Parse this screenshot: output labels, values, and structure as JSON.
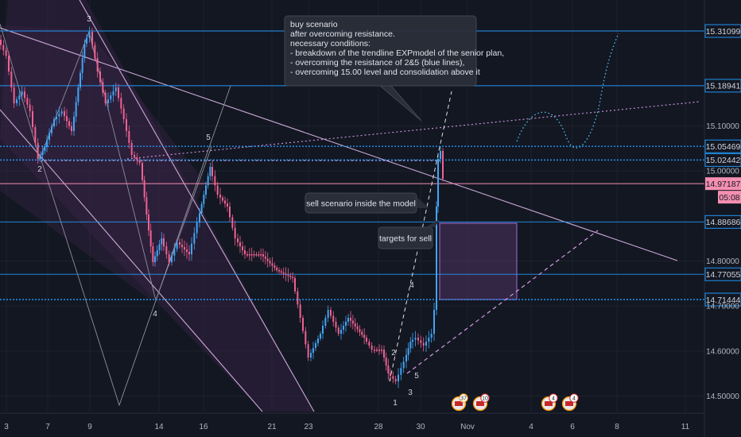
{
  "chart_data": {
    "type": "candlestick",
    "x_ticks": [
      "3",
      "7",
      "9",
      "14",
      "16",
      "21",
      "23",
      "28",
      "30",
      "Nov",
      "4",
      "6",
      "8",
      "11"
    ],
    "y_ticks": [
      "15.10000",
      "15.00000",
      "14.80000",
      "14.70000",
      "14.60000",
      "14.50000"
    ],
    "y_range": [
      14.47,
      15.36
    ],
    "levels": [
      {
        "value": 15.31099,
        "label": "15.31099",
        "color": "#2196f3",
        "style": "solid"
      },
      {
        "value": 15.18941,
        "label": "15.18941",
        "color": "#2196f3",
        "style": "solid"
      },
      {
        "value": 15.05469,
        "label": "15.05469",
        "color": "#2196f3",
        "style": "dotted"
      },
      {
        "value": 15.02442,
        "label": "15.02442",
        "color": "#2196f3",
        "style": "dotted"
      },
      {
        "value": 14.88686,
        "label": "14.88686",
        "color": "#2196f3",
        "style": "solid"
      },
      {
        "value": 14.77055,
        "label": "14.77055",
        "color": "#2196f3",
        "style": "solid"
      },
      {
        "value": 14.71444,
        "label": "14.71444",
        "color": "#2196f3",
        "style": "dotted"
      }
    ],
    "last_price": {
      "value": 14.97187,
      "label": "14.97187",
      "countdown": "05:08",
      "color": "#f48fb1"
    },
    "wave_labels": [
      "3",
      "2",
      "5",
      "4",
      "4",
      "2",
      "5",
      "1",
      "3"
    ],
    "annotations": {
      "buy": [
        "buy scenario",
        "after overcoming resistance.",
        "necessary conditions:",
        "- breakdown of the trendline EXPmodel of the senior plan,",
        "- overcoming the resistance of 2&5 (blue lines),",
        "- overcoming 15.00 level and consolidation above it"
      ],
      "sell": "sell scenario inside the model",
      "targets": "targets for sell"
    },
    "events": [
      "37",
      "10",
      "4",
      "4"
    ]
  }
}
